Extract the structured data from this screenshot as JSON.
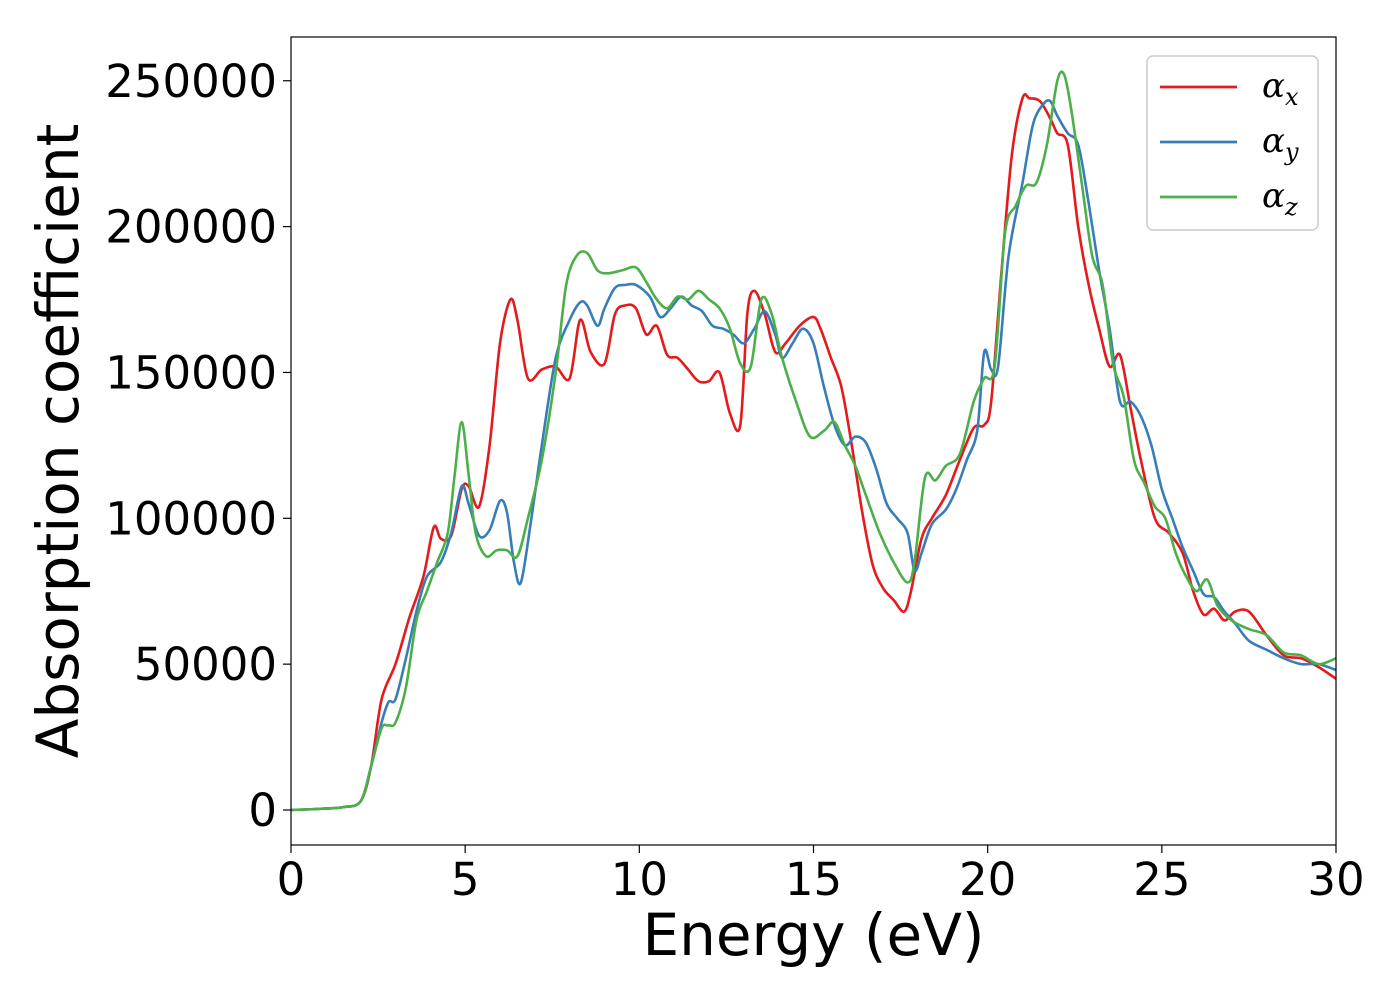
{
  "chart_data": {
    "type": "line",
    "title": "",
    "xlabel": "Energy (eV)",
    "ylabel": "Absorption coefficient",
    "xlim": [
      0,
      30
    ],
    "ylim": [
      -12000,
      265000
    ],
    "xticks": [
      0,
      5,
      10,
      15,
      20,
      25,
      30
    ],
    "yticks": [
      0,
      50000,
      100000,
      150000,
      200000,
      250000
    ],
    "xtick_labels": [
      "0",
      "5",
      "10",
      "15",
      "20",
      "25",
      "30"
    ],
    "ytick_labels": [
      "0",
      "50000",
      "100000",
      "150000",
      "200000",
      "250000"
    ],
    "grid": false,
    "legend_position": "top-right",
    "series": [
      {
        "name": "α_x",
        "symbol": "α",
        "subscript": "x",
        "color": "#e41a1c",
        "x": [
          0,
          1,
          1.5,
          2,
          2.3,
          2.6,
          3,
          3.4,
          3.8,
          4.1,
          4.3,
          4.6,
          4.9,
          5.1,
          5.4,
          5.7,
          6,
          6.3,
          6.5,
          6.8,
          7.2,
          7.6,
          8,
          8.3,
          8.6,
          9,
          9.3,
          9.6,
          9.9,
          10.2,
          10.5,
          10.8,
          11.1,
          11.4,
          11.7,
          12,
          12.3,
          12.6,
          12.9,
          13.1,
          13.3,
          13.6,
          13.9,
          14.2,
          14.6,
          15,
          15.2,
          15.5,
          15.8,
          16.1,
          16.4,
          16.7,
          17,
          17.3,
          17.6,
          17.8,
          18.1,
          18.4,
          18.8,
          19.2,
          19.6,
          19.9,
          20.1,
          20.4,
          20.7,
          21,
          21.2,
          21.5,
          21.8,
          22,
          22.3,
          22.6,
          22.9,
          23.2,
          23.5,
          23.8,
          24.1,
          24.4,
          24.8,
          25.2,
          25.6,
          25.9,
          26.2,
          26.5,
          26.8,
          27.1,
          27.5,
          28,
          28.5,
          29,
          29.5,
          30
        ],
        "y": [
          0,
          500,
          1000,
          3000,
          15000,
          38000,
          50000,
          66000,
          80000,
          97000,
          93000,
          94000,
          110000,
          111000,
          104000,
          125000,
          160000,
          175000,
          168000,
          148000,
          151000,
          152000,
          148000,
          168000,
          157000,
          153000,
          170000,
          173000,
          172000,
          163000,
          166000,
          156000,
          155000,
          151000,
          147000,
          147000,
          150000,
          136000,
          132000,
          170000,
          178000,
          170000,
          157000,
          160000,
          166000,
          169000,
          165000,
          155000,
          145000,
          125000,
          102000,
          84000,
          76000,
          72000,
          68000,
          75000,
          93000,
          100000,
          108000,
          120000,
          131000,
          132000,
          140000,
          185000,
          225000,
          244000,
          244000,
          243000,
          237000,
          232000,
          228000,
          200000,
          180000,
          165000,
          152000,
          156000,
          138000,
          120000,
          100000,
          95000,
          88000,
          75000,
          67000,
          69000,
          65000,
          68000,
          68000,
          60000,
          53000,
          52000,
          49000,
          45000
        ]
      },
      {
        "name": "α_y",
        "symbol": "α",
        "subscript": "y",
        "color": "#377eb8",
        "x": [
          0,
          1,
          1.5,
          2,
          2.3,
          2.6,
          2.8,
          3,
          3.3,
          3.6,
          3.9,
          4.3,
          4.6,
          4.9,
          5.1,
          5.4,
          5.7,
          6,
          6.2,
          6.4,
          6.6,
          6.9,
          7.2,
          7.6,
          8,
          8.3,
          8.5,
          8.8,
          9,
          9.3,
          9.6,
          9.9,
          10.3,
          10.6,
          10.9,
          11.2,
          11.5,
          11.8,
          12.1,
          12.4,
          12.7,
          13,
          13.3,
          13.6,
          13.9,
          14.1,
          14.4,
          14.7,
          15,
          15.3,
          15.6,
          15.9,
          16.2,
          16.5,
          16.8,
          17.1,
          17.4,
          17.7,
          17.9,
          18.1,
          18.4,
          18.8,
          19.1,
          19.4,
          19.7,
          19.9,
          20.1,
          20.3,
          20.6,
          21,
          21.3,
          21.6,
          21.8,
          22,
          22.3,
          22.6,
          22.9,
          23.2,
          23.5,
          23.8,
          24.1,
          24.4,
          24.7,
          25,
          25.3,
          25.6,
          25.9,
          26.2,
          26.5,
          26.8,
          27.1,
          27.5,
          28,
          28.5,
          29,
          29.5,
          30
        ],
        "y": [
          0,
          500,
          1000,
          3000,
          15000,
          30000,
          37000,
          38000,
          52000,
          68000,
          80000,
          85000,
          95000,
          111000,
          105000,
          94000,
          96000,
          106000,
          102000,
          85000,
          78000,
          100000,
          125000,
          155000,
          168000,
          174000,
          173000,
          166000,
          172000,
          179000,
          180000,
          180000,
          176000,
          169000,
          172000,
          176000,
          173000,
          171000,
          166000,
          165000,
          163000,
          160000,
          165000,
          171000,
          163000,
          155000,
          160000,
          165000,
          160000,
          145000,
          132000,
          125000,
          128000,
          126000,
          117000,
          105000,
          100000,
          95000,
          82000,
          88000,
          98000,
          103000,
          110000,
          120000,
          130000,
          157000,
          151000,
          152000,
          190000,
          215000,
          235000,
          242000,
          243000,
          238000,
          232000,
          228000,
          208000,
          185000,
          165000,
          140000,
          140000,
          135000,
          125000,
          110000,
          100000,
          90000,
          82000,
          74000,
          73000,
          68000,
          64000,
          58000,
          55000,
          52000,
          50000,
          50000,
          48000
        ]
      },
      {
        "name": "α_z",
        "symbol": "α",
        "subscript": "z",
        "color": "#4daf4a",
        "x": [
          0,
          1,
          1.5,
          2,
          2.3,
          2.6,
          2.8,
          3,
          3.3,
          3.6,
          3.9,
          4.2,
          4.5,
          4.7,
          4.9,
          5.1,
          5.3,
          5.6,
          5.9,
          6.2,
          6.5,
          6.8,
          7.2,
          7.6,
          7.9,
          8.2,
          8.5,
          8.8,
          9.1,
          9.5,
          9.9,
          10.2,
          10.5,
          10.8,
          11.1,
          11.4,
          11.7,
          12,
          12.3,
          12.6,
          12.9,
          13.2,
          13.5,
          13.8,
          14.1,
          14.5,
          14.9,
          15.3,
          15.6,
          15.9,
          16.2,
          16.5,
          16.9,
          17.3,
          17.7,
          17.9,
          18.2,
          18.5,
          18.8,
          19.2,
          19.6,
          19.9,
          20.2,
          20.5,
          20.8,
          21.1,
          21.4,
          21.7,
          22,
          22.2,
          22.4,
          22.7,
          23,
          23.3,
          23.6,
          23.9,
          24.2,
          24.5,
          24.8,
          25.1,
          25.4,
          25.7,
          26,
          26.3,
          26.6,
          27,
          27.5,
          28,
          28.5,
          29,
          29.5,
          30
        ],
        "y": [
          0,
          500,
          1000,
          3000,
          15000,
          28000,
          29000,
          30000,
          42000,
          65000,
          75000,
          85000,
          95000,
          115000,
          133000,
          115000,
          95000,
          87000,
          89000,
          89000,
          87000,
          100000,
          120000,
          150000,
          180000,
          190000,
          191000,
          185000,
          184000,
          185000,
          186000,
          181000,
          175000,
          172000,
          176000,
          175000,
          178000,
          175000,
          172000,
          165000,
          153000,
          152000,
          175000,
          170000,
          155000,
          140000,
          128000,
          130000,
          133000,
          125000,
          118000,
          108000,
          95000,
          85000,
          78000,
          85000,
          114000,
          113000,
          118000,
          122000,
          140000,
          148000,
          152000,
          198000,
          207000,
          214000,
          215000,
          228000,
          250000,
          252000,
          240000,
          215000,
          190000,
          180000,
          153000,
          142000,
          120000,
          112000,
          104000,
          100000,
          88000,
          80000,
          75000,
          79000,
          70000,
          65000,
          62000,
          60000,
          54000,
          53000,
          50000,
          52000
        ]
      }
    ]
  }
}
